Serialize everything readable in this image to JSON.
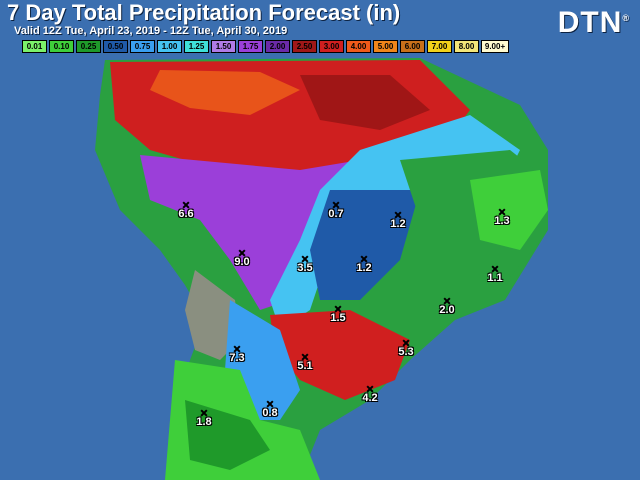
{
  "header": {
    "title": "7 Day Total Precipitation Forecast (in)",
    "valid": "Valid 12Z Tue, April 23, 2019 - 12Z Tue, April 30, 2019",
    "brand": "DTN"
  },
  "legend": [
    {
      "label": "0.01",
      "color": "#7cf26a"
    },
    {
      "label": "0.10",
      "color": "#3fcf3a"
    },
    {
      "label": "0.25",
      "color": "#1f9a2a"
    },
    {
      "label": "0.50",
      "color": "#1f5aa8"
    },
    {
      "label": "0.75",
      "color": "#3a9ff0"
    },
    {
      "label": "1.00",
      "color": "#45c3f2"
    },
    {
      "label": "1.25",
      "color": "#3fe0d8"
    },
    {
      "label": "1.50",
      "color": "#b07be6"
    },
    {
      "label": "1.75",
      "color": "#9b3fd9"
    },
    {
      "label": "2.00",
      "color": "#6b2aa8"
    },
    {
      "label": "2.50",
      "color": "#a01818"
    },
    {
      "label": "3.00",
      "color": "#d01f1f"
    },
    {
      "label": "4.00",
      "color": "#f05a1a"
    },
    {
      "label": "5.00",
      "color": "#f0861a"
    },
    {
      "label": "6.00",
      "color": "#c8701a"
    },
    {
      "label": "7.00",
      "color": "#f2d21a"
    },
    {
      "label": "8.00",
      "color": "#f2e67a"
    },
    {
      "label": "9.00+",
      "color": "#fffbd0"
    }
  ],
  "points": [
    {
      "value": "6.6"
    },
    {
      "value": "0.7"
    },
    {
      "value": "1.2"
    },
    {
      "value": "1.3"
    },
    {
      "value": "9.0"
    },
    {
      "value": "3.5"
    },
    {
      "value": "1.2"
    },
    {
      "value": "1.1"
    },
    {
      "value": "2.0"
    },
    {
      "value": "1.5"
    },
    {
      "value": "5.3"
    },
    {
      "value": "7.3"
    },
    {
      "value": "5.1"
    },
    {
      "value": "4.2"
    },
    {
      "value": "0.8"
    },
    {
      "value": "1.8"
    }
  ]
}
